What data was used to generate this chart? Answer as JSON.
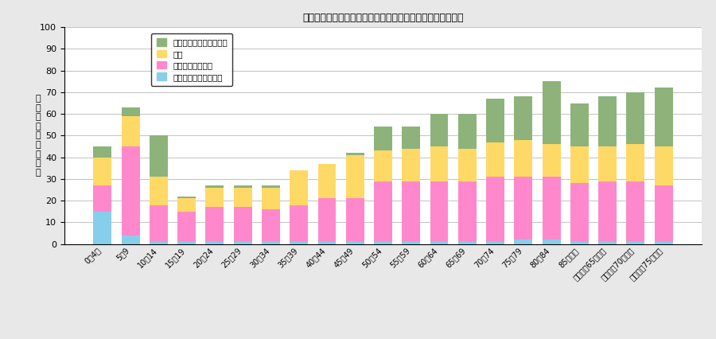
{
  "title": "呼吸器系疾患の年齢階級及び疾患別の通院者率（令和４年）",
  "ylabel": "通\n院\n者\n率\n（\n人\n口\n千\n対",
  "categories": [
    "0〜4歳",
    "5〜9",
    "10〜14",
    "15〜19",
    "20〜24",
    "25〜29",
    "30〜34",
    "35〜39",
    "40〜44",
    "45〜49",
    "50〜54",
    "55〜59",
    "60〜64",
    "65〜69",
    "70〜74",
    "75〜79",
    "80〜84",
    "85歳以上",
    "（再掲）65歳以上",
    "（再掲）70歳以上",
    "（再掲）75歳以上"
  ],
  "legend_labels": [
    "その他の呼吸器系の病気",
    "喘息",
    "アレルギー性鼻炎",
    "急性鼻咽頭炎（かぜ）"
  ],
  "colors": [
    "#8db37a",
    "#ffd966",
    "#ff88cc",
    "#87ceeb"
  ],
  "data": {
    "acute": [
      15,
      4,
      1,
      1,
      1,
      1,
      1,
      1,
      1,
      1,
      1,
      1,
      1,
      1,
      1,
      2,
      2,
      1,
      1,
      1,
      1
    ],
    "allergic": [
      12,
      41,
      17,
      14,
      16,
      16,
      15,
      17,
      20,
      20,
      28,
      28,
      28,
      28,
      30,
      29,
      29,
      27,
      28,
      28,
      26
    ],
    "asthma": [
      13,
      14,
      13,
      6,
      9,
      9,
      10,
      16,
      16,
      20,
      14,
      15,
      16,
      15,
      16,
      17,
      15,
      17,
      16,
      17,
      18
    ],
    "other": [
      5,
      4,
      19,
      1,
      1,
      1,
      1,
      0,
      0,
      1,
      11,
      10,
      15,
      16,
      20,
      20,
      29,
      20,
      23,
      24,
      27
    ]
  },
  "ylim": [
    0,
    100
  ],
  "yticks": [
    0,
    10,
    20,
    30,
    40,
    50,
    60,
    70,
    80,
    90,
    100
  ],
  "bar_width": 0.65,
  "background_color": "#e8e8e8",
  "plot_bg_color": "#ffffff"
}
